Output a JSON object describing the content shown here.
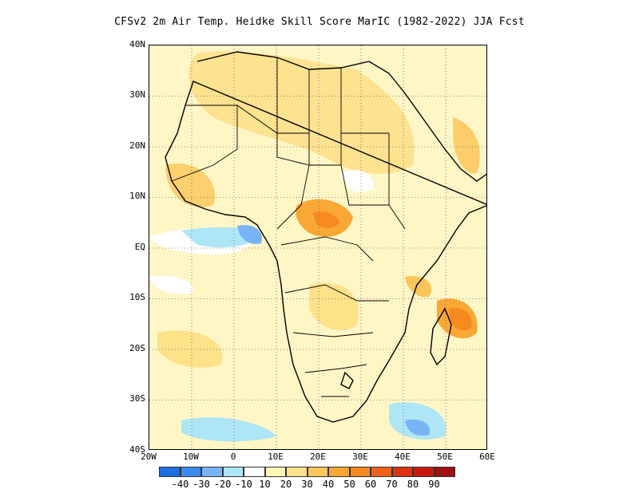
{
  "title": "CFSv2  2m Air Temp. Heidke Skill Score MarIC (1982-2022) JJA Fcst",
  "map": {
    "region": "Africa",
    "lon_range": [
      -20,
      60
    ],
    "lat_range": [
      -40,
      40
    ],
    "y_tick_labels": [
      "40N",
      "30N",
      "20N",
      "10N",
      "EQ",
      "10S",
      "20S",
      "30S",
      "40S"
    ],
    "x_tick_labels": [
      "20W",
      "10W",
      "0",
      "10E",
      "20E",
      "30E",
      "40E",
      "50E",
      "60E"
    ],
    "gridlines": "dotted"
  },
  "colorbar": {
    "colors": [
      "#1e6fe0",
      "#3c8cf0",
      "#78b4f5",
      "#aee6f5",
      "#ffffff",
      "#fff8b4",
      "#fde28a",
      "#fbc659",
      "#f9a735",
      "#f78a1e",
      "#f2611a",
      "#e03214",
      "#c81a12",
      "#a01010"
    ],
    "labels": [
      "-40",
      "-30",
      "-20",
      "-10",
      "10",
      "20",
      "30",
      "40",
      "50",
      "60",
      "70",
      "80",
      "90"
    ]
  }
}
